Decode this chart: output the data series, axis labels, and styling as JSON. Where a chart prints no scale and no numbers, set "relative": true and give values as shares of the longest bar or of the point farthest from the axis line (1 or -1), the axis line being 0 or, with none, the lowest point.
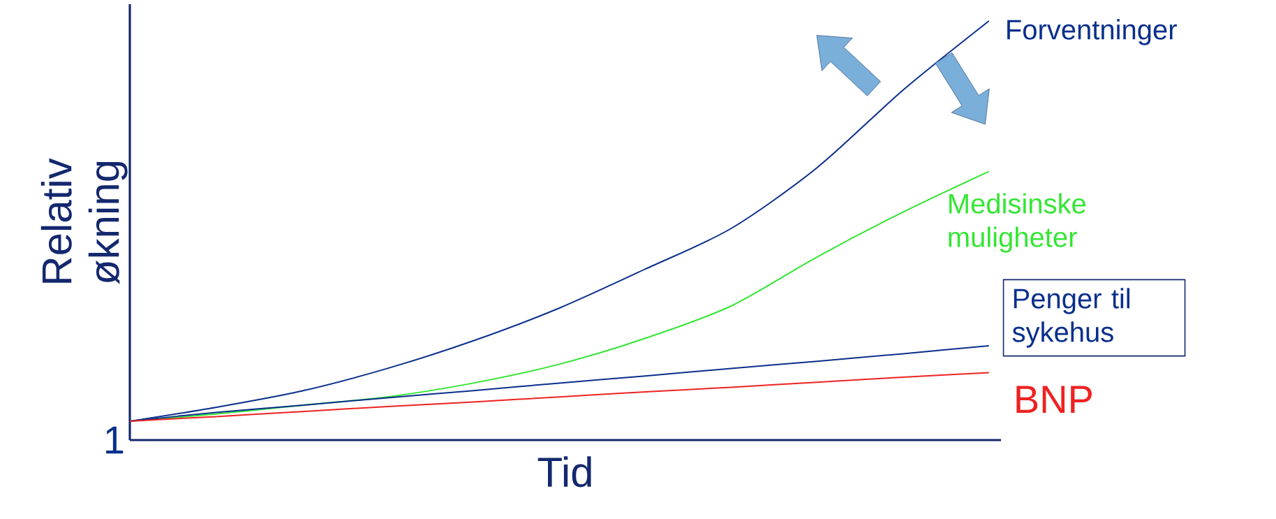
{
  "chart_data": {
    "type": "line",
    "relative": true,
    "xlabel": "Tid",
    "ylabel": "Relativ økning",
    "annotations": [
      "1"
    ],
    "categories": [
      null,
      null,
      null,
      null,
      null,
      null,
      null,
      null,
      null,
      null,
      null
    ],
    "series": [
      {
        "name": "Forventninger",
        "color": "#0a2f8c",
        "values": [
          0.045,
          0.078,
          0.117,
          0.171,
          0.237,
          0.315,
          0.408,
          0.505,
          0.65,
          0.835,
          1
        ]
      },
      {
        "name": "Medisinske muligheter",
        "color": "#33e633",
        "values": [
          0.045,
          0.062,
          0.083,
          0.103,
          0.136,
          0.181,
          0.243,
          0.32,
          0.437,
          0.544,
          0.641
        ]
      },
      {
        "name": "Penger til sykehus",
        "color": "#0a2f8c",
        "values": [
          0.045,
          0.066,
          0.083,
          0.101,
          0.118,
          0.136,
          0.153,
          0.171,
          0.188,
          0.206,
          0.225
        ]
      },
      {
        "name": "BNP",
        "color": "#ee2222",
        "values": [
          0.045,
          0.056,
          0.068,
          0.08,
          0.091,
          0.103,
          0.115,
          0.126,
          0.138,
          0.15,
          0.161
        ]
      }
    ]
  }
}
